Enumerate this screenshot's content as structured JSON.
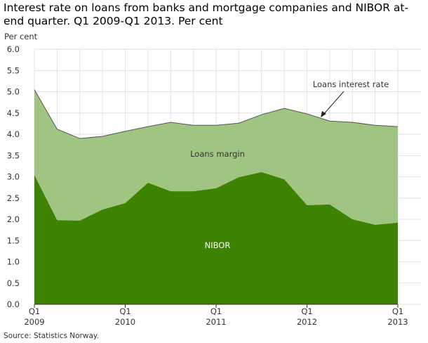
{
  "chart_data": {
    "type": "area",
    "title": "Interest rate on loans from banks and mortgage companies and NIBOR at-end quarter. Q1 2009-Q1 2013. Per cent",
    "ylabel": "Per cent",
    "ylim": [
      0,
      6
    ],
    "yticks": [
      "0.0",
      "0.5",
      "1.0",
      "1.5",
      "2.0",
      "2.5",
      "3.0",
      "3.5",
      "4.0",
      "4.5",
      "5.0",
      "5.5",
      "6.0"
    ],
    "xticks": [
      {
        "q": "Q1",
        "y": "2009",
        "i": 0
      },
      {
        "q": "Q1",
        "y": "2010",
        "i": 4
      },
      {
        "q": "Q1",
        "y": "2011",
        "i": 8
      },
      {
        "q": "Q1",
        "y": "2012",
        "i": 12
      },
      {
        "q": "Q1",
        "y": "2013",
        "i": 16
      }
    ],
    "series": [
      {
        "name": "Loans interest rate",
        "values": [
          5.05,
          4.12,
          3.9,
          3.95,
          4.07,
          4.18,
          4.28,
          4.21,
          4.21,
          4.26,
          4.46,
          4.61,
          4.48,
          4.31,
          4.28,
          4.21,
          4.18
        ]
      },
      {
        "name": "NIBOR",
        "values": [
          3.04,
          1.98,
          1.97,
          2.23,
          2.38,
          2.86,
          2.66,
          2.66,
          2.73,
          2.99,
          3.11,
          2.94,
          2.33,
          2.35,
          2.0,
          1.87,
          1.92
        ]
      }
    ],
    "annotations": {
      "loans_rate": "Loans interest rate",
      "margin": "Loans margin",
      "nibor": "NIBOR"
    },
    "colors": {
      "nibor": "#3d8200",
      "margin": "#a0c583"
    },
    "grid": true
  },
  "source": "Source: Statistics Norway."
}
